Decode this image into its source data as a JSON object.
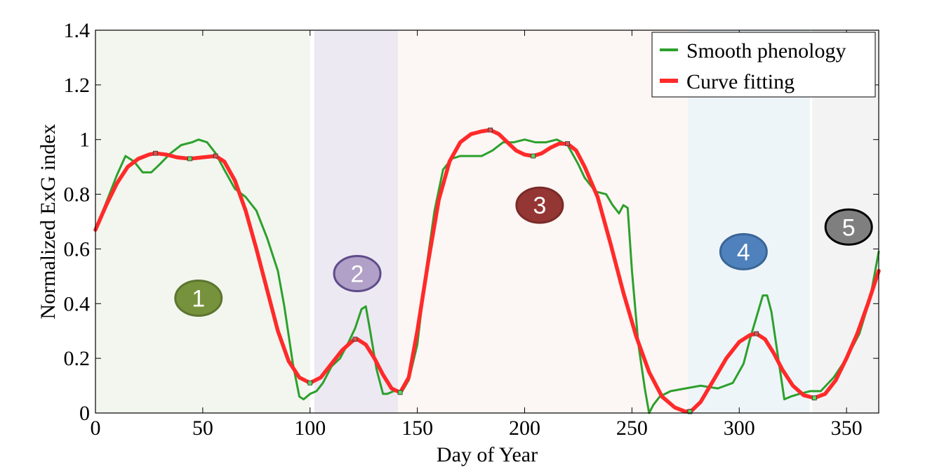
{
  "chart_data": {
    "type": "line",
    "xlabel": "Day of Year",
    "ylabel": "Normalized ExG index",
    "xlim": [
      0,
      365
    ],
    "ylim": [
      0,
      1.4
    ],
    "xticks": [
      "0",
      "50",
      "100",
      "150",
      "200",
      "250",
      "300",
      "350"
    ],
    "yticks": [
      "0",
      "0.2",
      "0.4",
      "0.6",
      "0.8",
      "1",
      "1.2",
      "1.4"
    ],
    "grid": false,
    "legend_position": "top-right",
    "periods": [
      {
        "label": "1",
        "start": 0,
        "end": 100,
        "label_x": 48,
        "label_y": 0.42,
        "band_color": "#f2f6ee",
        "marker_color": "#77923c",
        "marker_border": "#5c7530"
      },
      {
        "label": "2",
        "start": 102,
        "end": 141,
        "label_x": 122,
        "label_y": 0.51,
        "band_color": "#ece9f2",
        "marker_color": "#b1a0c7",
        "marker_border": "#5f4b8b"
      },
      {
        "label": "3",
        "start": 141,
        "end": 276,
        "label_x": 207,
        "label_y": 0.76,
        "band_color": "#fcf6f4",
        "marker_color": "#943634",
        "marker_border": "#7a2a28"
      },
      {
        "label": "4",
        "start": 276,
        "end": 333,
        "label_x": 302,
        "label_y": 0.59,
        "band_color": "#eef5f8",
        "marker_color": "#4f81bd",
        "marker_border": "#3a6697"
      },
      {
        "label": "5",
        "start": 334,
        "end": 365,
        "label_x": 351,
        "label_y": 0.68,
        "band_color": "#f3f3f3",
        "marker_color": "#7f7f7f",
        "marker_border": "#000000"
      }
    ],
    "series": [
      {
        "name": "Smooth phenology",
        "color": "#2ca02c",
        "x": [
          0,
          5,
          10,
          14,
          18,
          22,
          26,
          30,
          35,
          40,
          45,
          48,
          52,
          56,
          60,
          65,
          70,
          75,
          80,
          85,
          88,
          92,
          95,
          97,
          100,
          103,
          106,
          110,
          114,
          118,
          121,
          124,
          126,
          128,
          131,
          134,
          136,
          139,
          143,
          146,
          150,
          154,
          158,
          162,
          166,
          170,
          175,
          180,
          185,
          190,
          195,
          200,
          205,
          210,
          215,
          220,
          225,
          228,
          233,
          238,
          241,
          244,
          246,
          248,
          250,
          253,
          256,
          258,
          260,
          263,
          268,
          275,
          282,
          290,
          297,
          302,
          305,
          308,
          311,
          313,
          315,
          318,
          321,
          324,
          328,
          333,
          338,
          344,
          350,
          356,
          361,
          365
        ],
        "y": [
          0.67,
          0.77,
          0.87,
          0.94,
          0.92,
          0.88,
          0.88,
          0.91,
          0.95,
          0.98,
          0.99,
          1.0,
          0.99,
          0.95,
          0.89,
          0.82,
          0.79,
          0.74,
          0.64,
          0.52,
          0.39,
          0.18,
          0.06,
          0.05,
          0.07,
          0.08,
          0.11,
          0.17,
          0.2,
          0.26,
          0.31,
          0.38,
          0.39,
          0.3,
          0.16,
          0.07,
          0.07,
          0.08,
          0.08,
          0.12,
          0.25,
          0.52,
          0.74,
          0.89,
          0.93,
          0.94,
          0.94,
          0.94,
          0.96,
          0.99,
          0.99,
          1.0,
          0.99,
          0.99,
          1.0,
          0.98,
          0.91,
          0.86,
          0.81,
          0.8,
          0.76,
          0.73,
          0.76,
          0.75,
          0.52,
          0.25,
          0.09,
          0.0,
          0.03,
          0.06,
          0.08,
          0.09,
          0.1,
          0.09,
          0.11,
          0.18,
          0.27,
          0.35,
          0.43,
          0.43,
          0.37,
          0.21,
          0.05,
          0.06,
          0.07,
          0.08,
          0.08,
          0.13,
          0.2,
          0.29,
          0.42,
          0.59
        ]
      },
      {
        "name": "Curve fitting",
        "color": "#ff2a2a",
        "x": [
          0,
          5,
          10,
          15,
          20,
          25,
          28,
          33,
          38,
          44,
          50,
          56,
          60,
          65,
          70,
          75,
          80,
          85,
          90,
          95,
          100,
          105,
          110,
          115,
          120,
          122,
          126,
          130,
          134,
          138,
          142,
          146,
          150,
          155,
          160,
          165,
          170,
          175,
          180,
          184,
          188,
          192,
          196,
          200,
          204,
          208,
          212,
          216,
          220,
          224,
          228,
          234,
          240,
          246,
          252,
          258,
          264,
          270,
          275,
          278,
          282,
          288,
          294,
          300,
          305,
          308,
          312,
          316,
          320,
          325,
          330,
          335,
          340,
          345,
          350,
          355,
          360,
          365
        ],
        "y": [
          0.67,
          0.76,
          0.84,
          0.9,
          0.93,
          0.945,
          0.95,
          0.945,
          0.935,
          0.93,
          0.935,
          0.94,
          0.92,
          0.85,
          0.74,
          0.6,
          0.45,
          0.3,
          0.19,
          0.13,
          0.11,
          0.13,
          0.18,
          0.23,
          0.265,
          0.27,
          0.25,
          0.2,
          0.14,
          0.09,
          0.075,
          0.13,
          0.3,
          0.55,
          0.78,
          0.92,
          0.99,
          1.02,
          1.03,
          1.035,
          1.02,
          0.99,
          0.96,
          0.945,
          0.94,
          0.95,
          0.97,
          0.985,
          0.985,
          0.96,
          0.9,
          0.79,
          0.62,
          0.44,
          0.28,
          0.15,
          0.06,
          0.02,
          0.005,
          0.01,
          0.04,
          0.12,
          0.2,
          0.26,
          0.285,
          0.29,
          0.27,
          0.22,
          0.16,
          0.1,
          0.065,
          0.055,
          0.07,
          0.12,
          0.2,
          0.29,
          0.4,
          0.52
        ]
      }
    ],
    "key_points": [
      {
        "x": 28,
        "y": 0.95,
        "kind": "peak"
      },
      {
        "x": 44,
        "y": 0.93,
        "kind": "trough"
      },
      {
        "x": 56,
        "y": 0.94,
        "kind": "peak"
      },
      {
        "x": 100,
        "y": 0.11,
        "kind": "trough"
      },
      {
        "x": 121,
        "y": 0.27,
        "kind": "peak"
      },
      {
        "x": 142,
        "y": 0.075,
        "kind": "trough"
      },
      {
        "x": 184,
        "y": 1.035,
        "kind": "peak"
      },
      {
        "x": 204,
        "y": 0.94,
        "kind": "trough"
      },
      {
        "x": 220,
        "y": 0.985,
        "kind": "peak"
      },
      {
        "x": 277,
        "y": 0.005,
        "kind": "trough"
      },
      {
        "x": 308,
        "y": 0.29,
        "kind": "peak"
      },
      {
        "x": 335,
        "y": 0.055,
        "kind": "trough"
      }
    ]
  }
}
